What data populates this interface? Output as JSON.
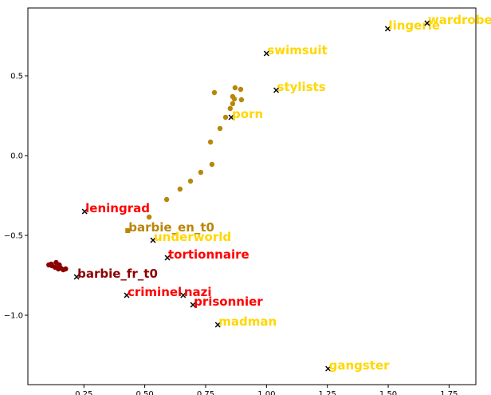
{
  "chart_data": {
    "type": "scatter",
    "xlim": [
      0.02,
      1.86
    ],
    "ylim": [
      -1.435,
      0.925
    ],
    "xticks": [
      0.25,
      {
        "value": 0.5,
        "label": "0.50"
      },
      0.75,
      {
        "value": 1.0,
        "label": "1.00"
      },
      1.25,
      {
        "value": 1.5,
        "label": "1.50"
      },
      1.75
    ],
    "yticks": [
      {
        "value": -1.0,
        "label": "−1.0"
      },
      {
        "value": -0.5,
        "label": "−0.5"
      },
      {
        "value": 0.0,
        "label": "0.0"
      },
      0.5
    ],
    "series": [
      {
        "color": "#b8860b",
        "x": [
          0.786,
          0.871,
          0.894,
          0.861,
          0.897,
          0.868,
          0.861,
          0.851,
          0.832,
          0.809,
          0.77,
          0.776,
          0.73,
          0.688,
          0.645,
          0.59,
          0.518
        ],
        "values": [
          0.395,
          0.425,
          0.415,
          0.37,
          0.35,
          0.355,
          0.325,
          0.295,
          0.24,
          0.17,
          0.085,
          -0.055,
          -0.105,
          -0.16,
          -0.21,
          -0.275,
          -0.385
        ]
      },
      {
        "color": "#8b0000",
        "x": [
          0.106,
          0.119,
          0.136,
          0.132,
          0.149,
          0.155,
          0.165,
          0.175,
          0.145,
          0.116
        ],
        "values": [
          -0.685,
          -0.69,
          -0.67,
          -0.7,
          -0.685,
          -0.705,
          -0.715,
          -0.71,
          -0.71,
          -0.68
        ]
      }
    ],
    "annotations": [
      {
        "text": "lingerie",
        "x": 1.498,
        "y": 0.795,
        "color": "#ffd700",
        "marker": "x"
      },
      {
        "text": "wardrobe",
        "x": 1.66,
        "y": 0.83,
        "color": "#ffd700",
        "marker": "x"
      },
      {
        "text": "swimsuit",
        "x": 1.0,
        "y": 0.64,
        "color": "#ffd700",
        "marker": "x"
      },
      {
        "text": "stylists",
        "x": 1.04,
        "y": 0.41,
        "color": "#ffd700",
        "marker": "x"
      },
      {
        "text": "porn",
        "x": 0.855,
        "y": 0.24,
        "color": "#ffd700",
        "marker": "x"
      },
      {
        "text": "leningrad",
        "x": 0.253,
        "y": -0.35,
        "color": "#ff0000",
        "marker": "x"
      },
      {
        "text": "barbie_en_t0",
        "x": 0.43,
        "y": -0.47,
        "color": "#b8860b",
        "marker": "s"
      },
      {
        "text": "underworld",
        "x": 0.534,
        "y": -0.53,
        "color": "#ffd700",
        "marker": "x"
      },
      {
        "text": "tortionnaire",
        "x": 0.593,
        "y": -0.64,
        "color": "#ff0000",
        "marker": "x"
      },
      {
        "text": "barbie_fr_t0",
        "x": 0.22,
        "y": -0.76,
        "color": "#8b0000",
        "marker": "x"
      },
      {
        "text": "criminel",
        "x": 0.426,
        "y": -0.875,
        "color": "#ff0000",
        "marker": "x"
      },
      {
        "text": "nazi",
        "x": 0.658,
        "y": -0.875,
        "color": "#ff0000",
        "marker": "x"
      },
      {
        "text": "prisonnier",
        "x": 0.698,
        "y": -0.935,
        "color": "#ff0000",
        "marker": "x"
      },
      {
        "text": "madman",
        "x": 0.8,
        "y": -1.06,
        "color": "#ffd700",
        "marker": "x"
      },
      {
        "text": "gangster",
        "x": 1.253,
        "y": -1.335,
        "color": "#ffd700",
        "marker": "x"
      }
    ]
  }
}
